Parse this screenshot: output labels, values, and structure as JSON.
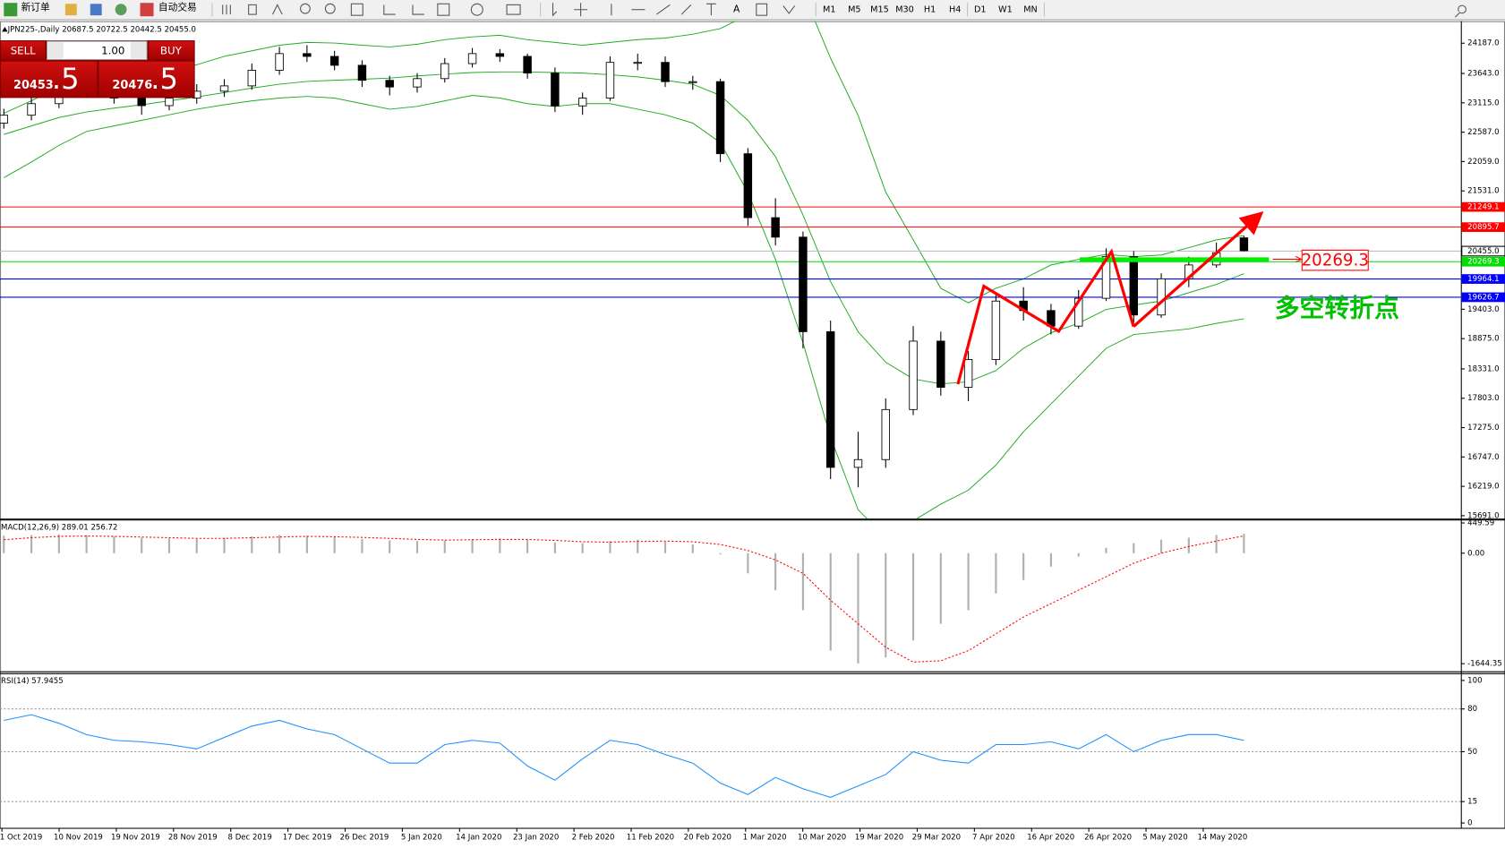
{
  "toolbar": {
    "new_order": "新订单",
    "auto_trading": "自动交易",
    "timeframes": [
      "M1",
      "M5",
      "M15",
      "M30",
      "H1",
      "H4",
      "D1",
      "W1",
      "MN"
    ]
  },
  "one_click": {
    "sell": "SELL",
    "buy": "BUY",
    "lot": "1.00",
    "sell_price": "20453",
    "sell_pips": ".5",
    "buy_price": "20476",
    "buy_pips": ".5"
  },
  "annotations": {
    "level_box": "20269.3",
    "note": "多空转折点"
  },
  "chart_data": [
    {
      "type": "candlestick",
      "title": "JPN225-,Daily  20687.5 20722.5 20442.5 20455.0",
      "up_color": "#ffffff",
      "down_color": "#000000",
      "open": [
        22750,
        22892,
        23100,
        23324,
        23324,
        23200,
        23064,
        23200,
        23324,
        23420,
        23700,
        24000,
        23950,
        23790,
        23520,
        23400,
        23550,
        23820,
        24000,
        23950,
        23650,
        23060,
        23200,
        23842,
        23842,
        23496,
        23496,
        22200,
        21050,
        20700,
        19000,
        16560,
        16700,
        17600,
        18830,
        18000,
        18500,
        19550,
        19380,
        19100,
        19600,
        20350,
        19300,
        19950,
        20200,
        20687.5
      ],
      "high": [
        23010,
        23230,
        23420,
        23450,
        23400,
        23280,
        23300,
        23450,
        23540,
        23820,
        24120,
        24150,
        24050,
        23880,
        23600,
        23650,
        23920,
        24100,
        24080,
        24000,
        23750,
        23300,
        23950,
        24000,
        23950,
        23600,
        23550,
        22300,
        21400,
        20800,
        19200,
        17200,
        17800,
        19100,
        19000,
        18650,
        19700,
        19800,
        19500,
        19750,
        20500,
        20450,
        20050,
        20350,
        20600,
        20722.5
      ],
      "low": [
        22650,
        22800,
        23020,
        23200,
        23100,
        22900,
        22980,
        23100,
        23220,
        23350,
        23620,
        23850,
        23700,
        23400,
        23250,
        23300,
        23480,
        23750,
        23850,
        23550,
        22950,
        22900,
        23150,
        23700,
        23400,
        23350,
        22050,
        20900,
        20550,
        18700,
        16350,
        16200,
        16550,
        17500,
        17850,
        17750,
        18400,
        19200,
        18950,
        19050,
        19550,
        19150,
        19250,
        19800,
        20150,
        20442.5
      ],
      "close": [
        22892,
        23100,
        23324,
        23324,
        23200,
        23064,
        23200,
        23324,
        23420,
        23700,
        24000,
        23950,
        23790,
        23520,
        23400,
        23550,
        23820,
        24000,
        23950,
        23650,
        23060,
        23200,
        23842,
        23842,
        23496,
        23496,
        22200,
        21050,
        20700,
        19000,
        16560,
        16700,
        17600,
        18830,
        18000,
        18500,
        19550,
        19380,
        19100,
        19600,
        20350,
        19300,
        19950,
        20200,
        20420,
        20455
      ],
      "bands": [
        {
          "color": "#22aa22",
          "values": [
            22926,
            23150,
            23400,
            23500,
            23550,
            23650,
            23700,
            23800,
            23950,
            24050,
            24150,
            24200,
            24190,
            24150,
            24120,
            24170,
            24250,
            24300,
            24330,
            24250,
            24200,
            24150,
            24200,
            24250,
            24280,
            24350,
            24450,
            24700,
            25000,
            25100,
            23920,
            22890,
            21510,
            20650,
            19780,
            19520,
            19780,
            19950,
            20200,
            20300,
            20390,
            20350,
            20380,
            20510,
            20650,
            20730
          ]
        },
        {
          "color": "#22aa22",
          "values": [
            22546,
            22700,
            22850,
            22950,
            23020,
            23080,
            23150,
            23220,
            23300,
            23380,
            23450,
            23500,
            23520,
            23540,
            23560,
            23600,
            23630,
            23660,
            23670,
            23670,
            23660,
            23650,
            23620,
            23580,
            23520,
            23450,
            23250,
            22800,
            22150,
            21100,
            19900,
            19000,
            18450,
            18150,
            18060,
            18100,
            18300,
            18700,
            18980,
            19150,
            19400,
            19480,
            19550,
            19700,
            19850,
            20043
          ]
        },
        {
          "color": "#22aa22",
          "values": [
            21769,
            22050,
            22350,
            22600,
            22700,
            22800,
            22900,
            23000,
            23080,
            23150,
            23200,
            23230,
            23200,
            23100,
            23000,
            23050,
            23150,
            23250,
            23200,
            23100,
            23050,
            23100,
            23100,
            23000,
            22900,
            22750,
            22400,
            21500,
            20300,
            18800,
            17100,
            15800,
            15300,
            15600,
            15900,
            16150,
            16600,
            17200,
            17700,
            18200,
            18700,
            18950,
            19000,
            19050,
            19150,
            19230
          ]
        }
      ],
      "ylim": [
        15639,
        24584
      ],
      "yticks": [
        {
          "value": 24187,
          "label": "24187.0"
        },
        {
          "value": 23643,
          "label": "23643.0"
        },
        {
          "value": 23115,
          "label": "23115.0"
        },
        {
          "value": 22587,
          "label": "22587.0"
        },
        {
          "value": 22059,
          "label": "22059.0"
        },
        {
          "value": 21531,
          "label": "21531.0"
        },
        {
          "value": 19403,
          "label": "19403.0"
        },
        {
          "value": 18875,
          "label": "18875.0"
        },
        {
          "value": 18331,
          "label": "18331.0"
        },
        {
          "value": 17803,
          "label": "17803.0"
        },
        {
          "value": 17275,
          "label": "17275.0"
        },
        {
          "value": 16747,
          "label": "16747.0"
        },
        {
          "value": 16219,
          "label": "16219.0"
        },
        {
          "value": 15691,
          "label": "15691.0"
        }
      ],
      "levels": [
        {
          "price": 21249.1,
          "label": "21249.1",
          "color": "#ff0000",
          "text_color": "#ffffff"
        },
        {
          "price": 20895.7,
          "label": "20895.7",
          "color": "#ff0000",
          "text_color": "#ffffff"
        },
        {
          "price": 20455,
          "label": "20455.0",
          "color": "#c0c0c0",
          "text_color": "#000000"
        },
        {
          "price": 20269.3,
          "label": "20269.3",
          "color": "#00dd00",
          "text_color": "#ffffff"
        },
        {
          "price": 19964.1,
          "label": "19964.1",
          "color": "#0000ff",
          "text_color": "#ffffff"
        },
        {
          "price": 19626.7,
          "label": "19626.7",
          "color": "#0000ff",
          "text_color": "#ffffff"
        }
      ],
      "x_labels": [
        "1 Oct 2019",
        "10 Nov 2019",
        "19 Nov 2019",
        "28 Nov 2019",
        "8 Dec 2019",
        "17 Dec 2019",
        "26 Dec 2019",
        "5 Jan 2020",
        "14 Jan 2020",
        "23 Jan 2020",
        "2 Feb 2020",
        "11 Feb 2020",
        "20 Feb 2020",
        "1 Mar 2020",
        "10 Mar 2020",
        "19 Mar 2020",
        "29 Mar 2020",
        "7 Apr 2020",
        "16 Apr 2020",
        "26 Apr 2020",
        "5 May 2020",
        "14 May 2020"
      ]
    },
    {
      "type": "macd",
      "title": "MACD(12,26,9) 289.01 256.72",
      "series": [
        {
          "style": "histogram",
          "color": "#b0b0b0",
          "values": [
            260,
            270,
            280,
            270,
            250,
            230,
            220,
            210,
            230,
            250,
            270,
            260,
            240,
            210,
            190,
            180,
            190,
            210,
            220,
            200,
            160,
            150,
            180,
            200,
            170,
            130,
            -20,
            -300,
            -550,
            -850,
            -1450,
            -1640,
            -1550,
            -1300,
            -1050,
            -850,
            -600,
            -400,
            -200,
            -50,
            80,
            150,
            200,
            230,
            270,
            289.01
          ]
        },
        {
          "style": "dotted",
          "color": "#ff0000",
          "values": [
            200,
            230,
            250,
            255,
            250,
            240,
            230,
            220,
            220,
            230,
            240,
            250,
            245,
            235,
            220,
            205,
            195,
            200,
            205,
            205,
            190,
            170,
            165,
            175,
            180,
            170,
            130,
            40,
            -100,
            -300,
            -700,
            -1050,
            -1400,
            -1620,
            -1600,
            -1450,
            -1200,
            -950,
            -750,
            -550,
            -350,
            -150,
            0,
            100,
            180,
            256.72
          ]
        }
      ],
      "ylim": [
        -1743,
        486
      ],
      "yticks": [
        449.59,
        {
          "value": 0,
          "label": "0.00"
        },
        -1644.35
      ]
    },
    {
      "type": "line",
      "title": "RSI(14) 57.9455",
      "color": "#1e90ff",
      "values": [
        72,
        76,
        70,
        62,
        58,
        57,
        55,
        52,
        60,
        68,
        72,
        66,
        62,
        52,
        42,
        42,
        55,
        58,
        56,
        40,
        30,
        45,
        58,
        55,
        48,
        42,
        28,
        20,
        32,
        24,
        18,
        26,
        34,
        50,
        44,
        42,
        55,
        55,
        57,
        52,
        62,
        50,
        58,
        62,
        62,
        57.9455
      ],
      "ylim": [
        -3.4,
        104.4
      ],
      "yticks": [
        100,
        80,
        50,
        15,
        0
      ]
    }
  ]
}
